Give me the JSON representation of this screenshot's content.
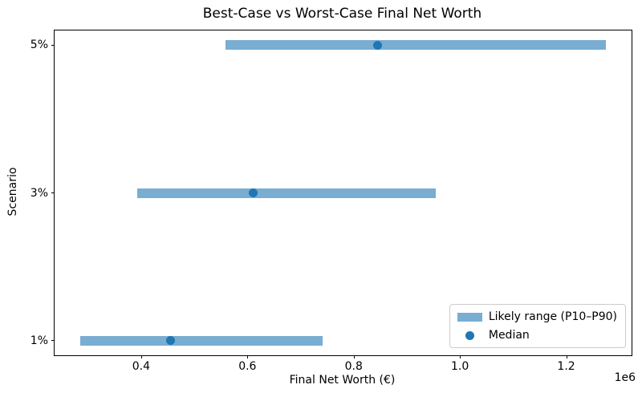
{
  "title": "Best-Case vs Worst-Case Final Net Worth",
  "chart_data": {
    "type": "bar",
    "orientation": "horizontal",
    "title": "Best-Case vs Worst-Case Final Net Worth",
    "xlabel": "Final Net Worth (€)",
    "ylabel": "Scenario",
    "x_offset_label": "1e6",
    "categories": [
      "1%",
      "3%",
      "5%"
    ],
    "series": [
      {
        "name": "P10",
        "values": [
          286000,
          392000,
          558000
        ]
      },
      {
        "name": "Median",
        "values": [
          456000,
          611000,
          845000
        ]
      },
      {
        "name": "P90",
        "values": [
          742000,
          955000,
          1274000
        ]
      }
    ],
    "xlim": [
      237000,
      1323000
    ],
    "xticks": [
      400000,
      600000,
      800000,
      1000000,
      1200000
    ],
    "xtick_labels": [
      "0.4",
      "0.6",
      "0.8",
      "1.0",
      "1.2"
    ],
    "grid": false,
    "legend": {
      "position": "lower right",
      "items": [
        {
          "label": "Likely range (P10–P90)",
          "swatch": "bar"
        },
        {
          "label": "Median",
          "swatch": "dot"
        }
      ]
    },
    "colors": {
      "range_bar": "#79add2",
      "median_dot": "#1f77b4",
      "spine": "#000000",
      "legend_border": "#cccccc"
    }
  }
}
